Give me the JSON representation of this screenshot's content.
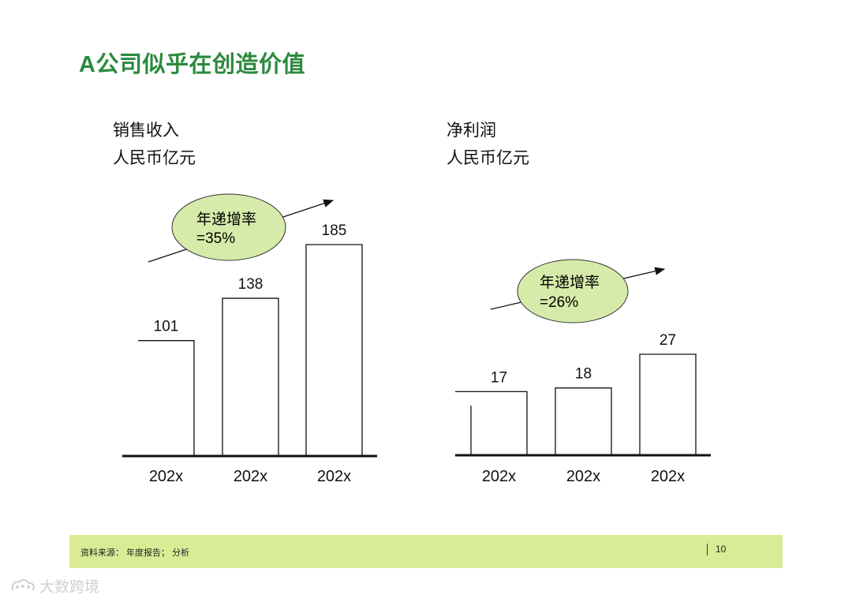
{
  "title": "A公司似乎在创造价值",
  "charts": {
    "sales": {
      "title": "销售收入",
      "unit": "人民币亿元",
      "growth_label": "年递增率",
      "growth_value": "=35%"
    },
    "profit": {
      "title": "净利润",
      "unit": "人民币亿元",
      "growth_label": "年递增率",
      "growth_value": "=26%"
    }
  },
  "chart_data": [
    {
      "type": "bar",
      "title": "销售收入",
      "ylabel": "人民币亿元",
      "categories": [
        "202x",
        "202x",
        "202x"
      ],
      "values": [
        101,
        138,
        185
      ],
      "annotation": "年递增率=35%",
      "ylim": [
        0,
        185
      ]
    },
    {
      "type": "bar",
      "title": "净利润",
      "ylabel": "人民币亿元",
      "categories": [
        "202x",
        "202x",
        "202x"
      ],
      "values": [
        17,
        18,
        27
      ],
      "annotation": "年递增率=26%",
      "ylim": [
        0,
        27
      ]
    }
  ],
  "footer": {
    "source": "资料来源： 年度报告； 分析",
    "page": "10"
  },
  "watermark": {
    "text": "大数跨境"
  },
  "colors": {
    "title": "#2b8a3e",
    "ellipse_fill": "#d6ebaa",
    "footer_bg": "#d9eb95"
  }
}
